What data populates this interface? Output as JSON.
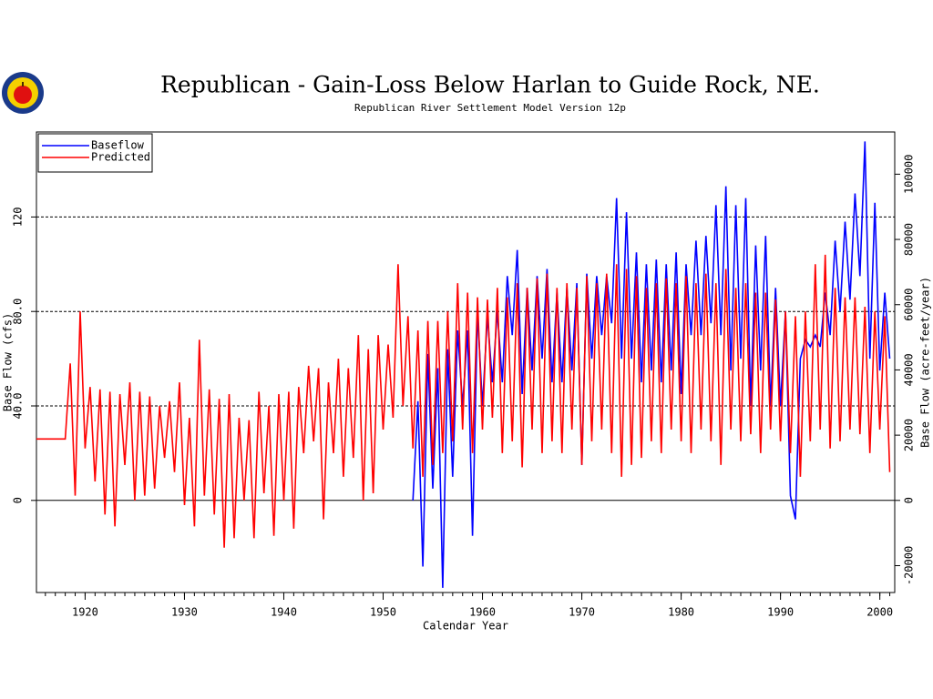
{
  "chart_data": {
    "type": "line",
    "title": "Republican - Gain-Loss Below Harlan to Guide Rock, NE.",
    "subtitle": "Republican River Settlement Model Version 12p",
    "xlabel": "Calendar Year",
    "ylabel": "Base Flow (cfs)",
    "y2label": "Base Flow (acre-feet/year)",
    "legend": "upper left",
    "xlim": [
      1915.1,
      2001.5
    ],
    "xticks": [
      1920,
      1930,
      1940,
      1950,
      1960,
      1970,
      1980,
      1990,
      2000
    ],
    "ylim": [
      -39,
      156
    ],
    "yticks": [
      0,
      {
        "value": 40,
        "label": "40.0"
      },
      {
        "value": 80,
        "label": "80.0"
      },
      120
    ],
    "y2lim": [
      -28235,
      112939
    ],
    "y2ticks": [
      -20000,
      0,
      20000,
      40000,
      60000,
      80000,
      100000
    ],
    "grid": true,
    "x": [
      1915.1,
      1918.0,
      1918.5,
      1919.0,
      1919.5,
      1920.0,
      1920.5,
      1921.0,
      1921.5,
      1922.0,
      1922.5,
      1923.0,
      1923.5,
      1924.0,
      1924.5,
      1925.0,
      1925.5,
      1926.0,
      1926.5,
      1927.0,
      1927.5,
      1928.0,
      1928.5,
      1929.0,
      1929.5,
      1930.0,
      1930.5,
      1931.0,
      1931.5,
      1932.0,
      1932.5,
      1933.0,
      1933.5,
      1934.0,
      1934.5,
      1935.0,
      1935.5,
      1936.0,
      1936.5,
      1937.0,
      1937.5,
      1938.0,
      1938.5,
      1939.0,
      1939.5,
      1940.0,
      1940.5,
      1941.0,
      1941.5,
      1942.0,
      1942.5,
      1943.0,
      1943.5,
      1944.0,
      1944.5,
      1945.0,
      1945.5,
      1946.0,
      1946.5,
      1947.0,
      1947.5,
      1948.0,
      1948.5,
      1949.0,
      1949.5,
      1950.0,
      1950.5,
      1951.0,
      1951.5,
      1952.0,
      1952.5,
      1953.0,
      1953.5,
      1954.0,
      1954.5,
      1955.0,
      1955.5,
      1956.0,
      1956.5,
      1957.0,
      1957.5,
      1958.0,
      1958.5,
      1959.0,
      1959.5,
      1960.0,
      1960.5,
      1961.0,
      1961.5,
      1962.0,
      1962.5,
      1963.0,
      1963.5,
      1964.0,
      1964.5,
      1965.0,
      1965.5,
      1966.0,
      1966.5,
      1967.0,
      1967.5,
      1968.0,
      1968.5,
      1969.0,
      1969.5,
      1970.0,
      1970.5,
      1971.0,
      1971.5,
      1972.0,
      1972.5,
      1973.0,
      1973.5,
      1974.0,
      1974.5,
      1975.0,
      1975.5,
      1976.0,
      1976.5,
      1977.0,
      1977.5,
      1978.0,
      1978.5,
      1979.0,
      1979.5,
      1980.0,
      1980.5,
      1981.0,
      1981.5,
      1982.0,
      1982.5,
      1983.0,
      1983.5,
      1984.0,
      1984.5,
      1985.0,
      1985.5,
      1986.0,
      1986.5,
      1987.0,
      1987.5,
      1988.0,
      1988.5,
      1989.0,
      1989.5,
      1990.0,
      1990.5,
      1991.0,
      1991.5,
      1992.0,
      1992.5,
      1993.0,
      1993.5,
      1994.0,
      1994.5,
      1995.0,
      1995.5,
      1996.0,
      1996.5,
      1997.0,
      1997.5,
      1998.0,
      1998.5,
      1999.0,
      1999.5,
      2000.0,
      2000.5,
      2001.0
    ],
    "series": [
      {
        "name": "Baseflow",
        "color": "#0000ff",
        "values": [
          null,
          null,
          null,
          null,
          null,
          null,
          null,
          null,
          null,
          null,
          null,
          null,
          null,
          null,
          null,
          null,
          null,
          null,
          null,
          null,
          null,
          null,
          null,
          null,
          null,
          null,
          null,
          null,
          null,
          null,
          null,
          null,
          null,
          null,
          null,
          null,
          null,
          null,
          null,
          null,
          null,
          null,
          null,
          null,
          null,
          null,
          null,
          null,
          null,
          null,
          null,
          null,
          null,
          null,
          null,
          null,
          null,
          null,
          null,
          null,
          null,
          null,
          null,
          null,
          null,
          null,
          null,
          null,
          null,
          null,
          null,
          0,
          42,
          -28,
          62,
          5,
          56,
          -37,
          64,
          10,
          72,
          40,
          72,
          -15,
          80,
          40,
          78,
          50,
          80,
          50,
          95,
          70,
          106,
          45,
          90,
          55,
          95,
          60,
          98,
          50,
          88,
          50,
          90,
          55,
          92,
          15,
          96,
          60,
          95,
          70,
          95,
          75,
          128,
          60,
          122,
          60,
          105,
          50,
          100,
          55,
          102,
          50,
          100,
          55,
          105,
          45,
          100,
          70,
          110,
          70,
          112,
          75,
          125,
          70,
          133,
          55,
          125,
          60,
          128,
          40,
          108,
          55,
          112,
          40,
          90,
          40,
          80,
          2,
          -8,
          60,
          68,
          65,
          70,
          65,
          88,
          70,
          110,
          80,
          118,
          85,
          130,
          95,
          152,
          60,
          126,
          55,
          88,
          60
        ]
      },
      {
        "name": "Predicted",
        "color": "#ff0000",
        "values": [
          26,
          26,
          58,
          2,
          80,
          22,
          48,
          8,
          47,
          -6,
          46,
          -11,
          45,
          15,
          50,
          0,
          46,
          2,
          44,
          5,
          40,
          18,
          42,
          12,
          50,
          -2,
          35,
          -11,
          68,
          2,
          47,
          -6,
          43,
          -20,
          45,
          -16,
          35,
          0,
          34,
          -16,
          46,
          3,
          40,
          -15,
          45,
          0,
          46,
          -12,
          48,
          20,
          57,
          25,
          56,
          -8,
          50,
          20,
          60,
          10,
          56,
          18,
          70,
          0,
          64,
          3,
          70,
          30,
          66,
          35,
          100,
          40,
          78,
          22,
          72,
          10,
          76,
          15,
          76,
          20,
          80,
          25,
          92,
          30,
          88,
          20,
          86,
          30,
          85,
          35,
          90,
          20,
          86,
          25,
          92,
          14,
          90,
          30,
          94,
          20,
          96,
          25,
          90,
          20,
          92,
          30,
          90,
          15,
          95,
          25,
          92,
          30,
          96,
          20,
          100,
          10,
          98,
          15,
          95,
          18,
          90,
          25,
          92,
          20,
          94,
          30,
          92,
          25,
          95,
          20,
          92,
          30,
          96,
          25,
          92,
          15,
          98,
          30,
          90,
          25,
          92,
          28,
          88,
          20,
          88,
          30,
          85,
          25,
          80,
          20,
          78,
          10,
          80,
          25,
          100,
          30,
          104,
          22,
          90,
          25,
          86,
          30,
          86,
          28,
          82,
          20,
          80,
          30,
          78,
          12
        ]
      }
    ]
  }
}
